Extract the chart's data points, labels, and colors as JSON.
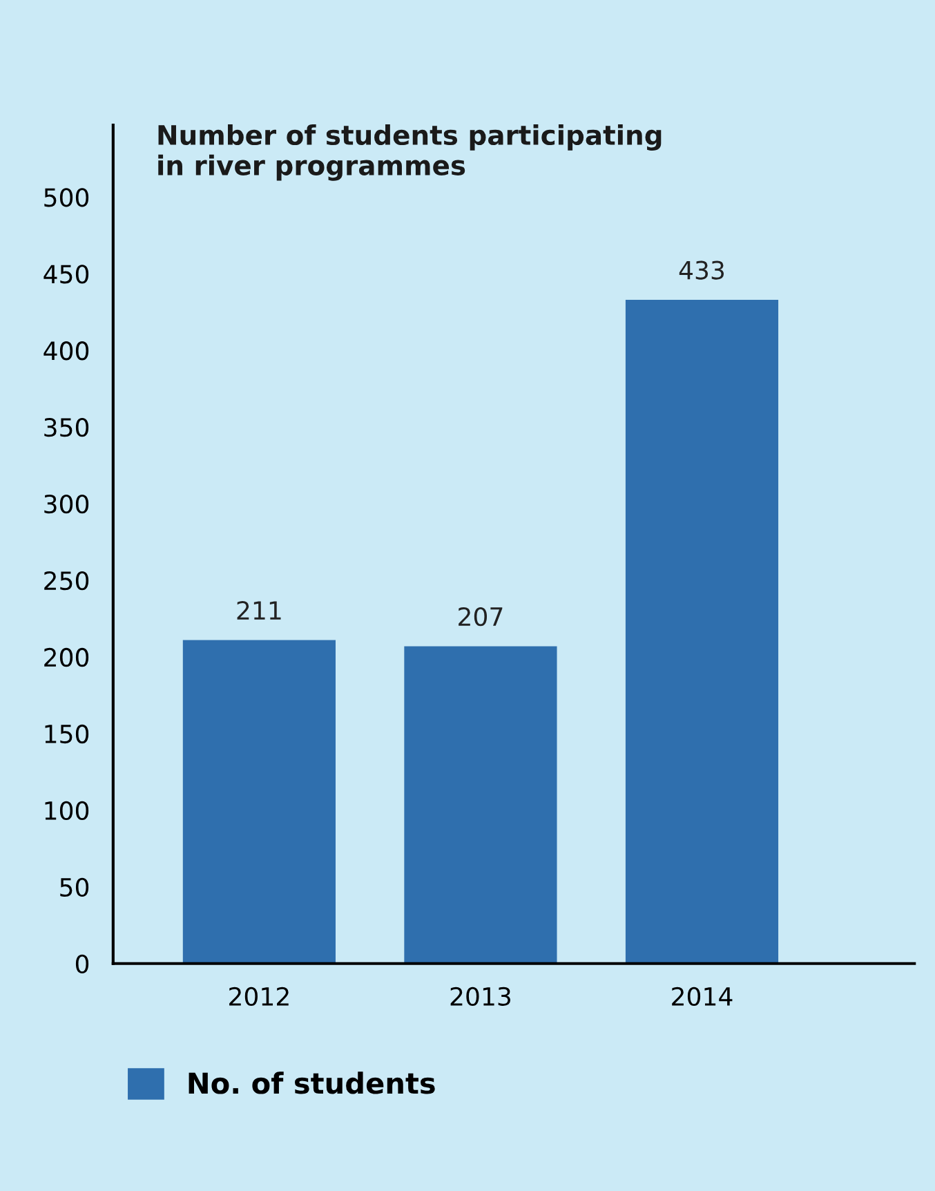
{
  "chart_data": {
    "type": "bar",
    "title": "Number of students participating\nin river programmes",
    "categories": [
      "2012",
      "2013",
      "2014"
    ],
    "series": [
      {
        "name": "No. of students",
        "color": "#2f6fae",
        "values": [
          211,
          207,
          433
        ]
      }
    ],
    "ylim": [
      0,
      547
    ],
    "yticks": [
      0,
      50,
      100,
      150,
      200,
      250,
      300,
      350,
      400,
      450,
      500
    ],
    "data_labels": true,
    "grid": false,
    "legend": "bottom left"
  }
}
